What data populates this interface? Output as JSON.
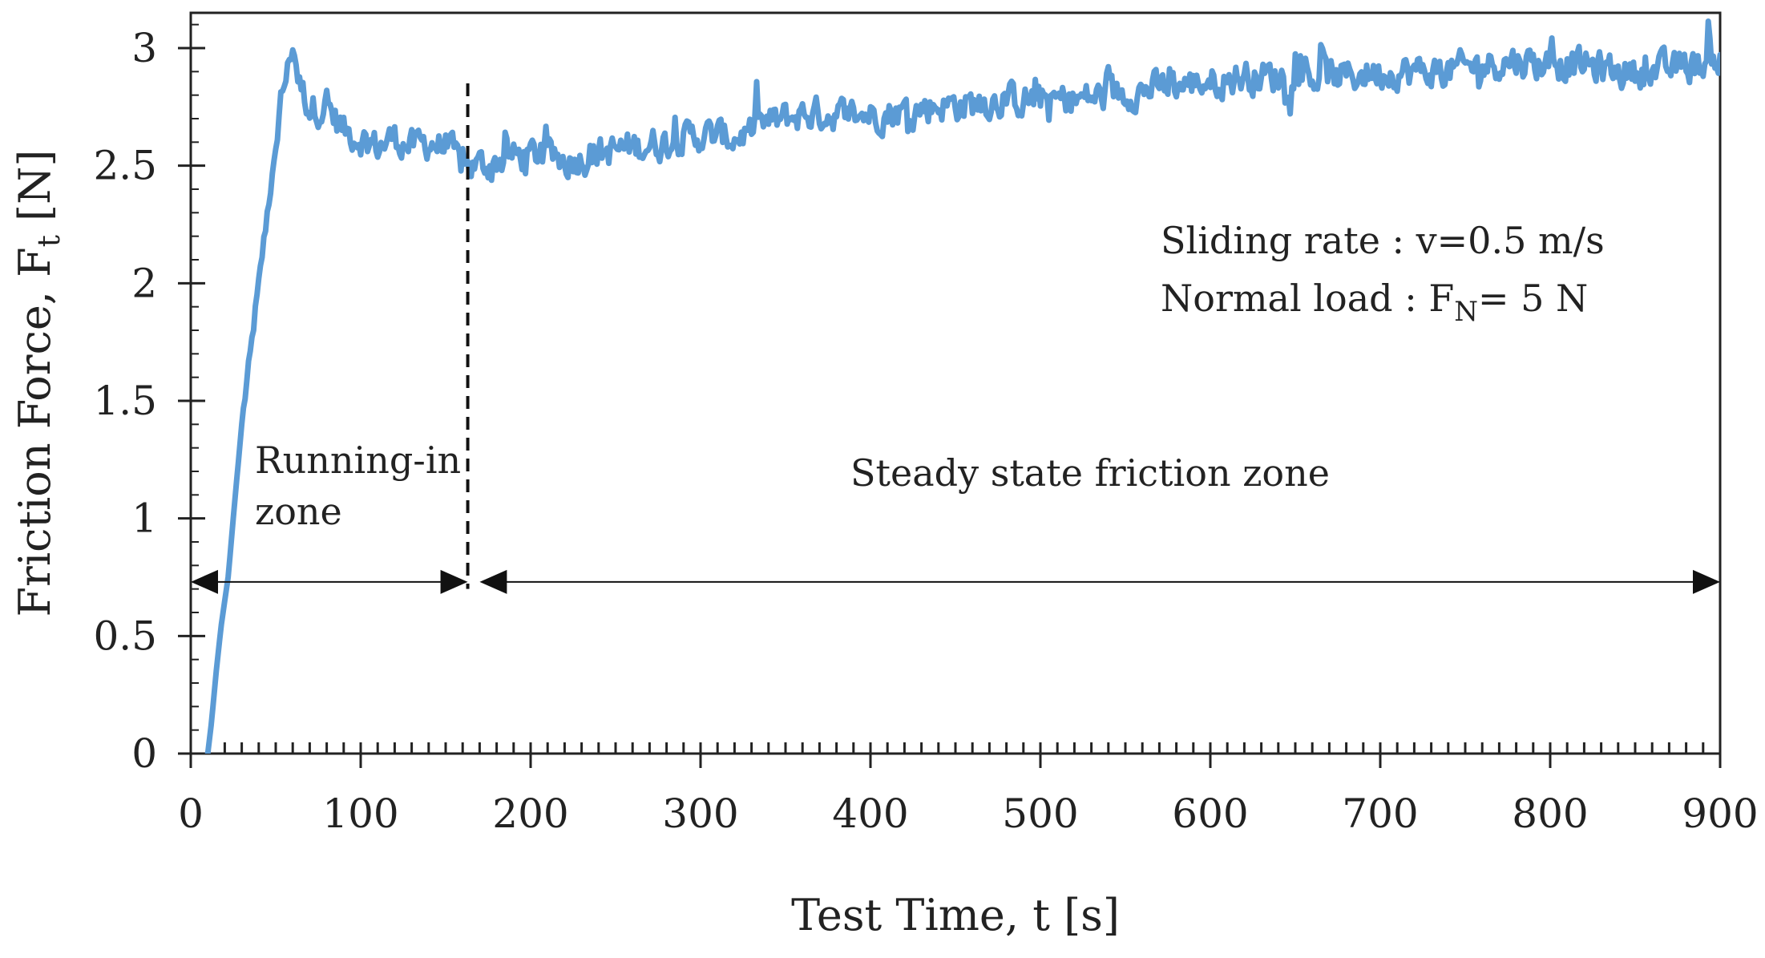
{
  "chart_data": {
    "type": "line",
    "xlabel": "Test Time, t [s]",
    "ylabel": {
      "text": "Friction Force,  F",
      "subscript": "t",
      "unit": " [N]"
    },
    "xlim": [
      0,
      900
    ],
    "ylim": [
      0,
      3.15
    ],
    "x_ticks": [
      0,
      100,
      200,
      300,
      400,
      500,
      600,
      700,
      800,
      900
    ],
    "x_tick_labels": [
      "0",
      "100",
      "200",
      "300",
      "400",
      "500",
      "600",
      "700",
      "800",
      "900"
    ],
    "x_minor_step": 10,
    "y_ticks": [
      0,
      0.5,
      1,
      1.5,
      2,
      2.5,
      3
    ],
    "y_tick_labels": [
      "0",
      "0.5",
      "1",
      "1.5",
      "2",
      "2.5",
      "3"
    ],
    "y_minor_step": 0.1,
    "grid": false,
    "series": [
      {
        "name": "Friction force",
        "color": "#5b9bd5",
        "key_points": [
          [
            10,
            0.0
          ],
          [
            12,
            0.12
          ],
          [
            15,
            0.35
          ],
          [
            18,
            0.55
          ],
          [
            22,
            0.75
          ],
          [
            25,
            1.0
          ],
          [
            30,
            1.4
          ],
          [
            35,
            1.7
          ],
          [
            40,
            2.0
          ],
          [
            45,
            2.3
          ],
          [
            50,
            2.55
          ],
          [
            53,
            2.8
          ],
          [
            57,
            2.9
          ],
          [
            60,
            3.03
          ],
          [
            64,
            2.85
          ],
          [
            70,
            2.75
          ],
          [
            80,
            2.75
          ],
          [
            90,
            2.65
          ],
          [
            100,
            2.62
          ],
          [
            110,
            2.58
          ],
          [
            120,
            2.62
          ],
          [
            130,
            2.58
          ],
          [
            140,
            2.6
          ],
          [
            150,
            2.58
          ],
          [
            160,
            2.5
          ],
          [
            170,
            2.5
          ],
          [
            180,
            2.52
          ],
          [
            200,
            2.55
          ],
          [
            220,
            2.52
          ],
          [
            240,
            2.55
          ],
          [
            260,
            2.58
          ],
          [
            280,
            2.6
          ],
          [
            300,
            2.63
          ],
          [
            320,
            2.62
          ],
          [
            340,
            2.68
          ],
          [
            360,
            2.72
          ],
          [
            380,
            2.72
          ],
          [
            400,
            2.72
          ],
          [
            420,
            2.73
          ],
          [
            440,
            2.76
          ],
          [
            460,
            2.76
          ],
          [
            480,
            2.78
          ],
          [
            500,
            2.78
          ],
          [
            520,
            2.78
          ],
          [
            540,
            2.8
          ],
          [
            560,
            2.82
          ],
          [
            580,
            2.84
          ],
          [
            600,
            2.86
          ],
          [
            620,
            2.88
          ],
          [
            640,
            2.88
          ],
          [
            660,
            2.88
          ],
          [
            680,
            2.88
          ],
          [
            700,
            2.9
          ],
          [
            720,
            2.9
          ],
          [
            740,
            2.9
          ],
          [
            760,
            2.93
          ],
          [
            780,
            2.95
          ],
          [
            800,
            2.93
          ],
          [
            820,
            2.93
          ],
          [
            840,
            2.9
          ],
          [
            860,
            2.9
          ],
          [
            880,
            2.92
          ],
          [
            900,
            2.95
          ]
        ],
        "noise_amplitude": 0.06,
        "sample_step_s": 1
      }
    ],
    "zone_divider_x": 163,
    "annotations": {
      "conditions": {
        "line1": "Sliding rate : v=0.5 m/s",
        "line2_prefix": "Normal load  : F",
        "line2_subscript": "N",
        "line2_suffix": "= 5 N"
      },
      "running_in_zone": {
        "line1": "Running-in",
        "line2": "zone",
        "arrow_range": [
          0,
          163
        ]
      },
      "steady_zone": {
        "label": "Steady state friction zone",
        "arrow_range": [
          170,
          900
        ]
      }
    }
  }
}
